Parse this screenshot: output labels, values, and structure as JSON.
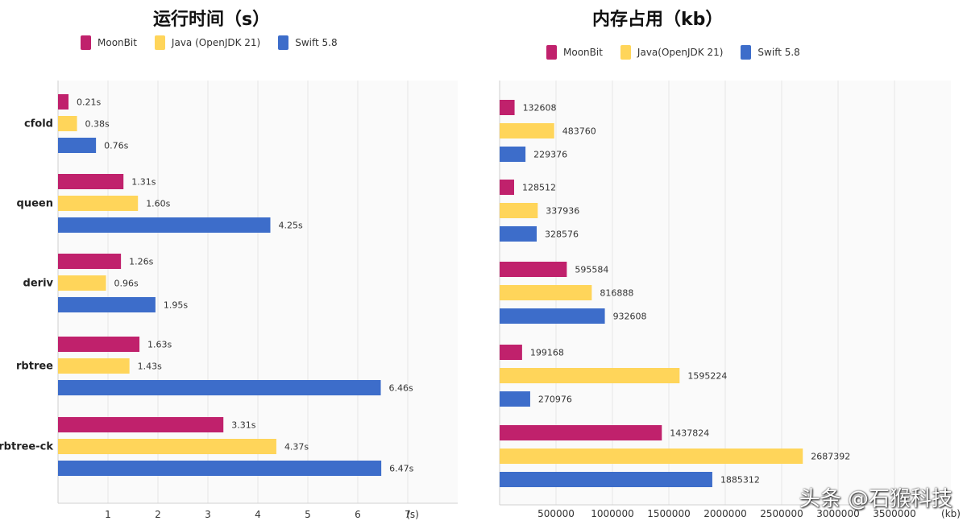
{
  "colors": {
    "moonbit": "#C0216C",
    "java": "#FFD55A",
    "swift": "#3D6DCA",
    "grid": "#E6E6E6",
    "axis": "#D0D0D0",
    "text": "#333333",
    "plot_bg": "#FAFAFA"
  },
  "legend": [
    {
      "name": "MoonBit",
      "color_key": "moonbit"
    },
    {
      "name": "Java (OpenJDK 21)",
      "color_key": "java"
    },
    {
      "name": "Swift 5.8",
      "color_key": "swift"
    }
  ],
  "legend_right": [
    {
      "name": "MoonBit",
      "color_key": "moonbit"
    },
    {
      "name": "Java(OpenJDK 21)",
      "color_key": "java"
    },
    {
      "name": "Swift 5.8",
      "color_key": "swift"
    }
  ],
  "watermark": "头条 @石猴科技",
  "chart_data": [
    {
      "type": "bar",
      "orientation": "horizontal",
      "title": "运行时间（s）",
      "categories": [
        "cfold",
        "queen",
        "deriv",
        "rbtree",
        "rbtree-ck"
      ],
      "series": [
        {
          "name": "MoonBit",
          "values": [
            0.21,
            1.31,
            1.26,
            1.63,
            3.31
          ],
          "labels": [
            "0.21s",
            "1.31s",
            "1.26s",
            "1.63s",
            "3.31s"
          ]
        },
        {
          "name": "Java (OpenJDK 21)",
          "values": [
            0.38,
            1.6,
            0.96,
            1.43,
            4.37
          ],
          "labels": [
            "0.38s",
            "1.60s",
            "0.96s",
            "1.43s",
            "4.37s"
          ]
        },
        {
          "name": "Swift 5.8",
          "values": [
            0.76,
            4.25,
            1.95,
            6.46,
            6.47
          ],
          "labels": [
            "0.76s",
            "4.25s",
            "1.95s",
            "6.46s",
            "6.47s"
          ]
        }
      ],
      "xlim": [
        0,
        8
      ],
      "xticks": [
        1,
        2,
        3,
        4,
        5,
        6,
        7
      ],
      "xunit": "(s)",
      "grid": true,
      "legend_position": "top"
    },
    {
      "type": "bar",
      "orientation": "horizontal",
      "title": "内存占用（kb）",
      "categories": [
        "cfold",
        "queen",
        "deriv",
        "rbtree",
        "rbtree-ck"
      ],
      "series": [
        {
          "name": "MoonBit",
          "values": [
            132608,
            128512,
            595584,
            199168,
            1437824
          ],
          "labels": [
            "132608",
            "128512",
            "595584",
            "199168",
            "1437824"
          ]
        },
        {
          "name": "Java(OpenJDK 21)",
          "values": [
            483760,
            337936,
            816888,
            1595224,
            2687392
          ],
          "labels": [
            "483760",
            "337936",
            "816888",
            "1595224",
            "2687392"
          ]
        },
        {
          "name": "Swift 5.8",
          "values": [
            229376,
            328576,
            932608,
            270976,
            1885312
          ],
          "labels": [
            "229376",
            "328576",
            "932608",
            "270976",
            "1885312"
          ]
        }
      ],
      "xlim": [
        0,
        4000000
      ],
      "xticks": [
        500000,
        1000000,
        1500000,
        2000000,
        2500000,
        3000000,
        3500000
      ],
      "xunit": "(kb)",
      "grid": true,
      "legend_position": "top"
    }
  ]
}
